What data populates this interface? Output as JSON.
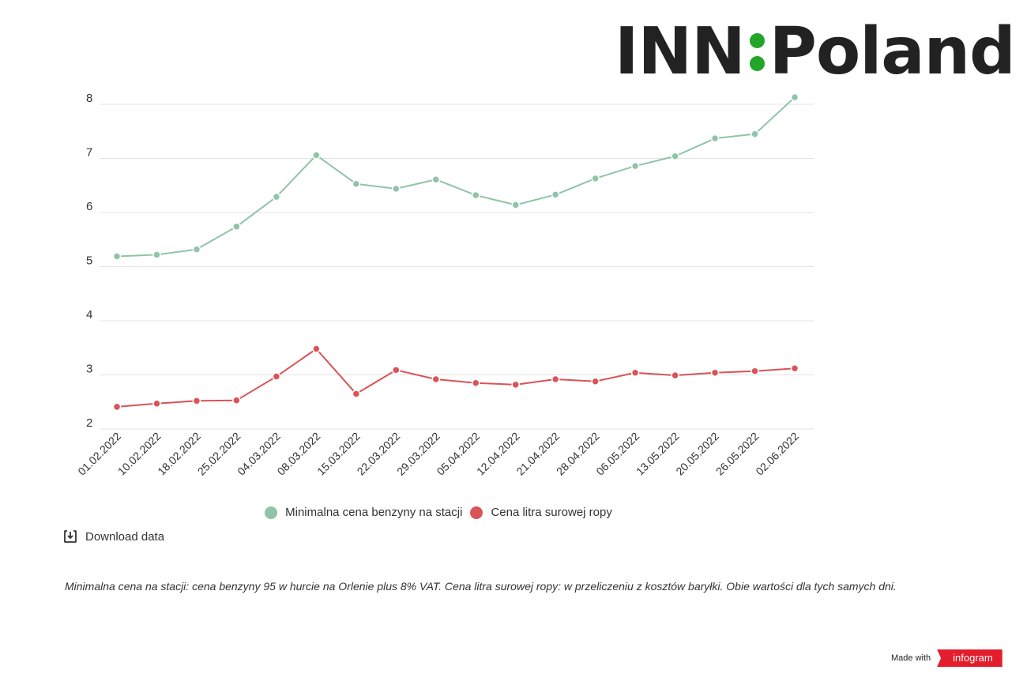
{
  "logo": {
    "left": "INN",
    "right": "Poland",
    "accent": "#22a52a",
    "text_color": "#222222"
  },
  "chart_data": {
    "type": "line",
    "title": "",
    "xlabel": "",
    "ylabel": "",
    "ylim": [
      2,
      8
    ],
    "yticks": [
      2,
      3,
      4,
      5,
      6,
      7,
      8
    ],
    "grid": true,
    "legend_position": "bottom",
    "categories": [
      "01.02.2022",
      "10.02.2022",
      "18.02.2022",
      "25.02.2022",
      "04.03.2022",
      "08.03.2022",
      "15.03.2022",
      "22.03.2022",
      "29.03.2022",
      "05.04.2022",
      "12.04.2022",
      "21.04.2022",
      "28.04.2022",
      "06.05.2022",
      "13.05.2022",
      "20.05.2022",
      "26.05.2022",
      "02.06.2022"
    ],
    "series": [
      {
        "name": "Minimalna cena benzyny na stacji",
        "color": "#8fc4a8",
        "values": [
          5.19,
          5.22,
          5.32,
          5.74,
          6.29,
          7.06,
          6.53,
          6.44,
          6.61,
          6.32,
          6.14,
          6.33,
          6.63,
          6.86,
          7.04,
          7.37,
          7.45,
          8.13
        ]
      },
      {
        "name": "Cena litra surowej ropy",
        "color": "#d95357",
        "values": [
          2.41,
          2.47,
          2.52,
          2.53,
          2.97,
          3.48,
          2.65,
          3.09,
          2.92,
          2.85,
          2.82,
          2.92,
          2.88,
          3.04,
          2.99,
          3.04,
          3.07,
          3.12
        ]
      }
    ]
  },
  "download": {
    "label": "Download data",
    "icon": "download-icon"
  },
  "footnote": "Minimalna cena na stacji: cena benzyny 95 w hurcie na Orlenie plus 8% VAT. Cena litra surowej ropy: w przeliczeniu z kosztów baryłki. Obie wartości dla tych samych dni.",
  "branding": {
    "made_with": "Made with",
    "infogram": "infogram",
    "badge_color": "#e31d2b"
  }
}
